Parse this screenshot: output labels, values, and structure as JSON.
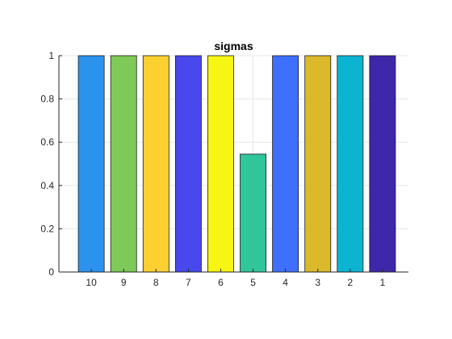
{
  "chart_data": {
    "type": "bar",
    "title": "sigmas",
    "xlabel": "",
    "ylabel": "",
    "categories": [
      "10",
      "9",
      "8",
      "7",
      "6",
      "5",
      "4",
      "3",
      "2",
      "1"
    ],
    "values": [
      1,
      1,
      1,
      1,
      1,
      0.545,
      1,
      1,
      1,
      1
    ],
    "bar_colors": [
      "#2b93ee",
      "#7ec957",
      "#fcd031",
      "#4848ec",
      "#f7f513",
      "#31c59c",
      "#3e6ffd",
      "#dbb92a",
      "#0bb5d2",
      "#3e27a8"
    ],
    "ylim": [
      0,
      1
    ],
    "xlim": [
      -0.4,
      10.4
    ],
    "yticks": [
      0,
      0.2,
      0.4,
      0.6,
      0.8,
      1
    ],
    "ytick_labels": [
      "0",
      "0.2",
      "0.4",
      "0.6",
      "0.8",
      "1"
    ],
    "grid": true,
    "legend": "none"
  }
}
